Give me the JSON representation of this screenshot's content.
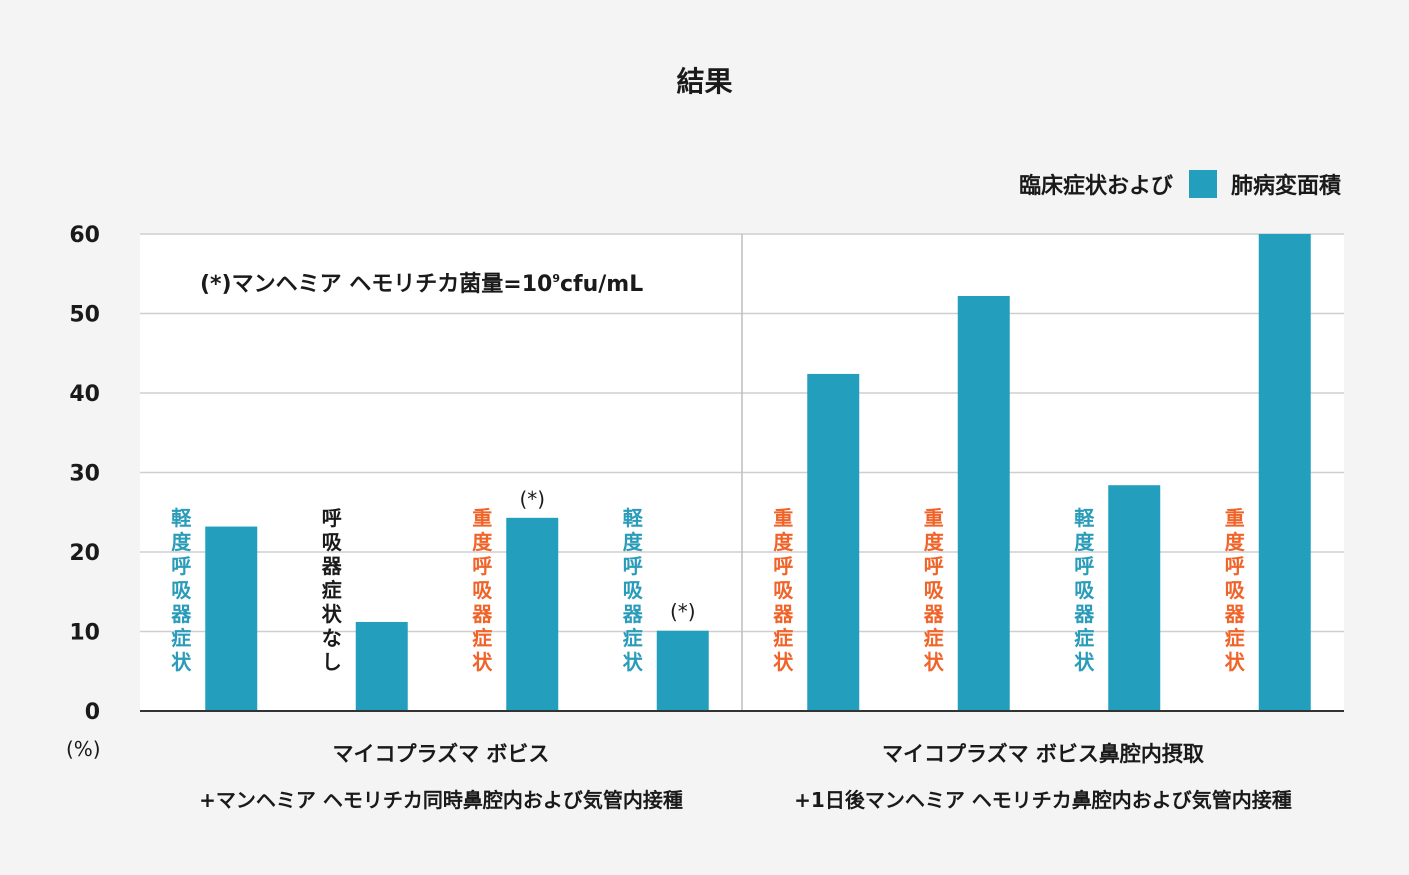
{
  "title": "結果",
  "legend": {
    "prefix": "臨床症状および",
    "label": "肺病変面積",
    "color": "#239fbd"
  },
  "note": {
    "prefix": "(*)マンヘミア ヘモリチカ菌量=10",
    "exp": "9",
    "suffix": "cfu/mL"
  },
  "unit_label": "(%)",
  "groups": [
    {
      "line1": "マイコプラズマ ボビス",
      "line2": "+マンヘミア ヘモリチカ同時鼻腔内および気管内接種"
    },
    {
      "line1": "マイコプラズマ ボビス鼻腔内摂取",
      "line2": "+1日後マンヘミア ヘモリチカ鼻腔内および気管内接種"
    }
  ],
  "chart_data": {
    "type": "bar",
    "title": "結果",
    "ylabel": "(%)",
    "ylim": [
      0,
      60
    ],
    "yticks": [
      0,
      10,
      20,
      30,
      40,
      50,
      60
    ],
    "grid": true,
    "legend_position": "top-right",
    "bar_color": "#239fbd",
    "series": [
      {
        "name": "肺病変面積",
        "values": [
          23.2,
          11.2,
          24.3,
          10.1,
          42.4,
          52.2,
          28.4,
          60
        ]
      }
    ],
    "symptom_labels": [
      "軽度呼吸器症状",
      "呼吸器症状なし",
      "重度呼吸器症状",
      "軽度呼吸器症状",
      "重度呼吸器症状",
      "重度呼吸器症状",
      "軽度呼吸器症状",
      "重度呼吸器症状"
    ],
    "symptom_colors": [
      "#2a9cba",
      "#1a1a1a",
      "#f0642a",
      "#2a9cba",
      "#f0642a",
      "#f0642a",
      "#2a9cba",
      "#f0642a"
    ],
    "markers": [
      "",
      "",
      "(*)",
      "(*)",
      "",
      "",
      "",
      ""
    ]
  }
}
